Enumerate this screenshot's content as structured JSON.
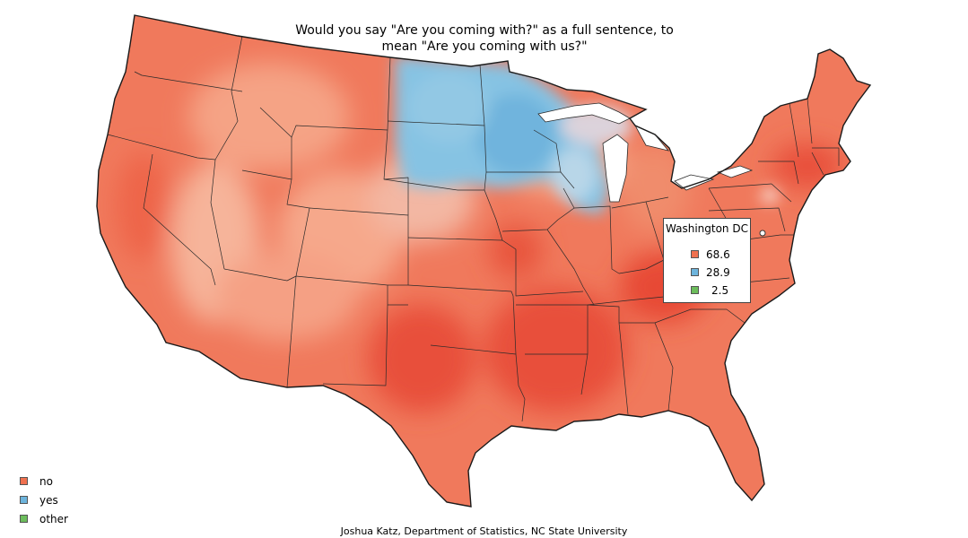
{
  "title_line1": "Would you say \"Are you coming with?\" as a full sentence, to",
  "title_line2": "mean \"Are you coming with us?\"",
  "colors": {
    "no": "#f0714f",
    "yes": "#6db4dc",
    "other": "#6cbd5c"
  },
  "tooltip": {
    "title": "Washington DC",
    "values": [
      {
        "key": "no",
        "value": "68.6"
      },
      {
        "key": "yes",
        "value": "28.9"
      },
      {
        "key": "other",
        "value": "2.5"
      }
    ]
  },
  "legend": [
    {
      "key": "no",
      "label": "no"
    },
    {
      "key": "yes",
      "label": "yes"
    },
    {
      "key": "other",
      "label": "other"
    }
  ],
  "credit": "Joshua Katz, Department of Statistics, NC State University"
}
